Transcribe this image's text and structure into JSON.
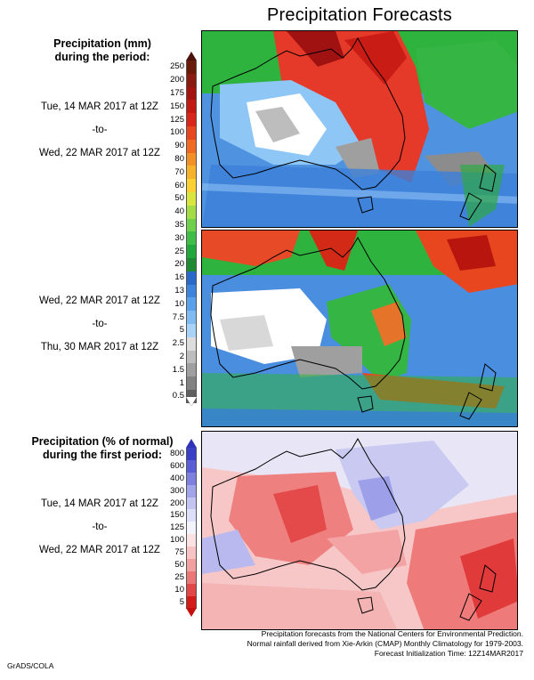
{
  "title": "Precipitation Forecasts",
  "panel1": {
    "heading_line1": "Precipitation (mm)",
    "heading_line2": "during the period:",
    "start": "Tue, 14 MAR 2017 at 12Z",
    "sep": "-to-",
    "end": "Wed, 22 MAR 2017 at 12Z"
  },
  "panel2": {
    "start": "Wed, 22 MAR 2017 at 12Z",
    "sep": "-to-",
    "end": "Thu, 30 MAR 2017 at 12Z"
  },
  "panel3": {
    "heading_line1": "Precipitation (% of normal)",
    "heading_line2": "during the first period:",
    "start": "Tue, 14 MAR 2017 at 12Z",
    "sep": "-to-",
    "end": "Wed, 22 MAR 2017 at 12Z"
  },
  "mm_scale": {
    "labels": [
      "250",
      "200",
      "175",
      "150",
      "125",
      "100",
      "90",
      "80",
      "70",
      "60",
      "50",
      "40",
      "35",
      "30",
      "25",
      "20",
      "16",
      "13",
      "10",
      "7.5",
      "5",
      "2.5",
      "2",
      "1.5",
      "1",
      "0.5"
    ],
    "colors": [
      "#6b1a0a",
      "#8b1a10",
      "#a5130f",
      "#c21a13",
      "#d9261a",
      "#e8461e",
      "#f06a22",
      "#f49028",
      "#f7b22c",
      "#fad033",
      "#d9e640",
      "#a3dc45",
      "#6fd14b",
      "#3fbe47",
      "#21a83c",
      "#1f8a34",
      "#2b69c8",
      "#3e84dc",
      "#5aa0ea",
      "#7fbaf2",
      "#a9d2f8",
      "#dddddd",
      "#bdbdbd",
      "#9f9f9f",
      "#828282",
      "#5f5f5f"
    ]
  },
  "pct_scale": {
    "labels": [
      "800",
      "600",
      "400",
      "300",
      "200",
      "150",
      "125",
      "100",
      "75",
      "50",
      "25",
      "10",
      "5"
    ],
    "colors": [
      "#3a3fc8",
      "#5a5ed6",
      "#7e80e0",
      "#a2a4ea",
      "#c3c4f2",
      "#dedff8",
      "#f3f3fb",
      "#fbe2e2",
      "#f8c3c3",
      "#f2a0a0",
      "#eb7676",
      "#e24646",
      "#d51a1a"
    ]
  },
  "footer": {
    "line1": "Precipitation forecasts from the National Centers for Environmental Prediction.",
    "line2": "Normal rainfall derived from Xie-Arkin (CMAP) Monthly Climatology for 1979-2003.",
    "line3": "Forecast Initialization Time: 12Z14MAR2017"
  },
  "credit": "GrADS/COLA"
}
